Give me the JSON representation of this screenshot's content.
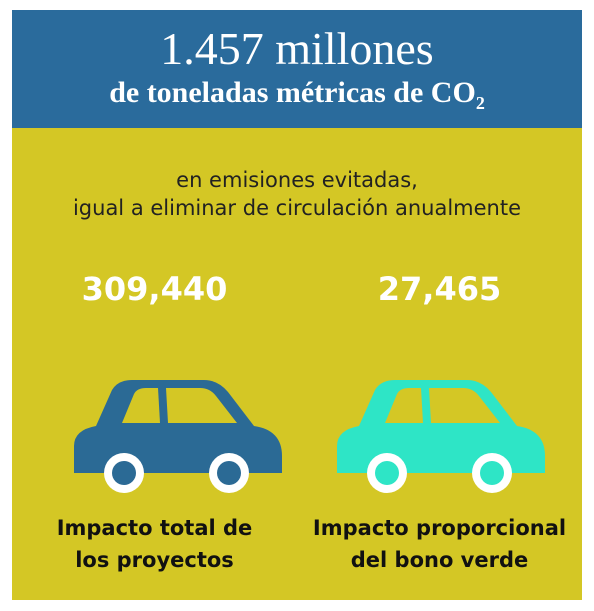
{
  "header": {
    "title": "1.457 millones",
    "subtitle": "de toneladas métricas de CO",
    "subscript": "2"
  },
  "body": {
    "lines": [
      "en emisiones evitadas,",
      "igual a eliminar de circulación anualmente"
    ]
  },
  "items": [
    {
      "number": "309,440",
      "label": [
        "Impacto total de",
        "los proyectos"
      ],
      "color": "#2b6a95"
    },
    {
      "number": "27,465",
      "label": [
        "Impacto proporcional",
        "del bono verde"
      ],
      "color": "#2ee5c6"
    }
  ]
}
